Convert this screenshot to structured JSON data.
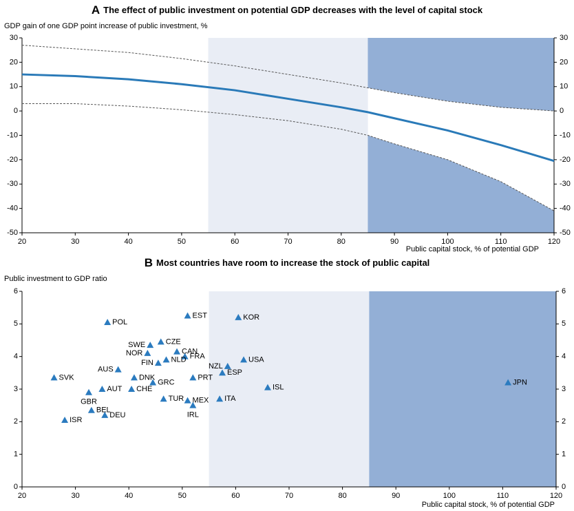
{
  "chart_data": [
    {
      "type": "line",
      "panel": "A",
      "title": "The effect of public investment on potential GDP decreases with the level of capital stock",
      "y_label": "GDP gain of one GDP point increase of public investment, %",
      "x_label": "Public capital stock, % of potential GDP",
      "x": [
        20,
        30,
        40,
        50,
        60,
        70,
        80,
        85,
        90,
        100,
        110,
        120
      ],
      "series": [
        {
          "color": "#2a7ab8",
          "style": "solid",
          "values": [
            15,
            14.3,
            13,
            11,
            8.5,
            5,
            1.5,
            -0.5,
            -3,
            -8,
            -14,
            -20.5
          ]
        },
        {
          "color": "#555555",
          "style": "dashed",
          "values": [
            27,
            25.5,
            24,
            21.5,
            18.5,
            15,
            11.5,
            9.5,
            7.5,
            4,
            1.5,
            0
          ]
        },
        {
          "color": "#555555",
          "style": "dashed",
          "values": [
            3,
            3,
            2,
            0.5,
            -1.5,
            -4,
            -7.5,
            -10,
            -13.5,
            -20,
            -29,
            -41
          ]
        }
      ],
      "shaded_regions": [
        {
          "xlim": [
            55,
            85
          ],
          "color": "#e9edf5"
        },
        {
          "xlim": [
            85,
            120
          ],
          "color": "#93afd6",
          "outside_band": true
        }
      ],
      "xlim": [
        20,
        120
      ],
      "xticks": [
        20,
        30,
        40,
        50,
        60,
        70,
        80,
        90,
        100,
        110,
        120
      ],
      "ylim": [
        -50,
        30
      ],
      "yticks": [
        -50,
        -40,
        -30,
        -20,
        -10,
        0,
        10,
        20,
        30
      ],
      "y2lim": [
        -50,
        30
      ],
      "y2ticks": [
        -50,
        -40,
        -30,
        -20,
        -10,
        0,
        10,
        20,
        30
      ]
    },
    {
      "type": "scatter",
      "panel": "B",
      "title": "Most countries have room to increase the stock of public capital",
      "y_label": "Public investment to GDP ratio",
      "x_label": "Public capital stock, % of potential GDP",
      "color": "#2b7bbf",
      "labels": [
        "POL",
        "EST",
        "KOR",
        "SWE",
        "CZE",
        "NOR",
        "CAN",
        "FRA",
        "USA",
        "FIN",
        "NLD",
        "NZL",
        "AUS",
        "ESP",
        "SVK",
        "DNK",
        "PRT",
        "GRC",
        "ISL",
        "JPN",
        "AUT",
        "CHE",
        "GBR",
        "TUR",
        "MEX",
        "ITA",
        "IRL",
        "BEL",
        "DEU",
        "ISR"
      ],
      "x": [
        36,
        51,
        60.5,
        44,
        46,
        43.5,
        49,
        50.5,
        61.5,
        45.5,
        47,
        58.5,
        38,
        57.5,
        26,
        41,
        52,
        44.5,
        66,
        111,
        35,
        40.5,
        32.5,
        46.5,
        51,
        57,
        52,
        33,
        35.5,
        28
      ],
      "values": [
        5.05,
        5.25,
        5.2,
        4.35,
        4.45,
        4.1,
        4.15,
        4.0,
        3.9,
        3.8,
        3.9,
        3.7,
        3.6,
        3.5,
        3.35,
        3.35,
        3.35,
        3.2,
        3.05,
        3.2,
        3.0,
        3.0,
        2.9,
        2.7,
        2.65,
        2.7,
        2.5,
        2.35,
        2.2,
        2.05
      ],
      "shaded_regions": [
        {
          "xlim": [
            55,
            85
          ],
          "color": "#e9edf5"
        },
        {
          "xlim": [
            85,
            120
          ],
          "color": "#93afd6"
        }
      ],
      "xlim": [
        20,
        120
      ],
      "xticks": [
        20,
        30,
        40,
        50,
        60,
        70,
        80,
        90,
        100,
        110,
        120
      ],
      "ylim": [
        0,
        6
      ],
      "yticks": [
        0,
        1,
        2,
        3,
        4,
        5,
        6
      ],
      "y2lim": [
        0,
        6
      ],
      "y2ticks": [
        0,
        1,
        2,
        3,
        4,
        5,
        6
      ]
    }
  ]
}
